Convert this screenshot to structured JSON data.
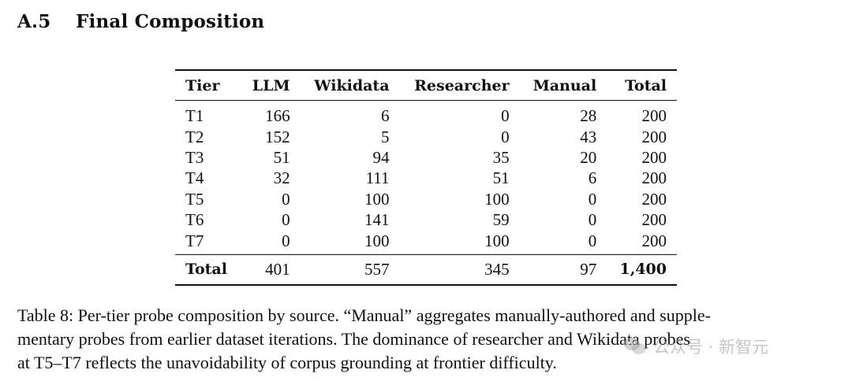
{
  "section": {
    "number": "A.5",
    "title": "Final Composition"
  },
  "table": {
    "headers": [
      "Tier",
      "LLM",
      "Wikidata",
      "Researcher",
      "Manual",
      "Total"
    ],
    "rows": [
      [
        "T1",
        "166",
        "6",
        "0",
        "28",
        "200"
      ],
      [
        "T2",
        "152",
        "5",
        "0",
        "43",
        "200"
      ],
      [
        "T3",
        "51",
        "94",
        "35",
        "20",
        "200"
      ],
      [
        "T4",
        "32",
        "111",
        "51",
        "6",
        "200"
      ],
      [
        "T5",
        "0",
        "100",
        "100",
        "0",
        "200"
      ],
      [
        "T6",
        "0",
        "141",
        "59",
        "0",
        "200"
      ],
      [
        "T7",
        "0",
        "100",
        "100",
        "0",
        "200"
      ]
    ],
    "totals": [
      "Total",
      "401",
      "557",
      "345",
      "97",
      "1,400"
    ]
  },
  "caption": {
    "lines": [
      "Table 8: Per-tier probe composition by source. “Manual” aggregates manually-authored and supple-",
      "mentary probes from earlier dataset iterations. The dominance of researcher and Wikidata probes",
      "at T5–T7 reflects the unavoidability of corpus grounding at frontier difficulty."
    ]
  },
  "watermark": {
    "icon": "wechat-icon",
    "text": "公众号 · 新智元"
  }
}
